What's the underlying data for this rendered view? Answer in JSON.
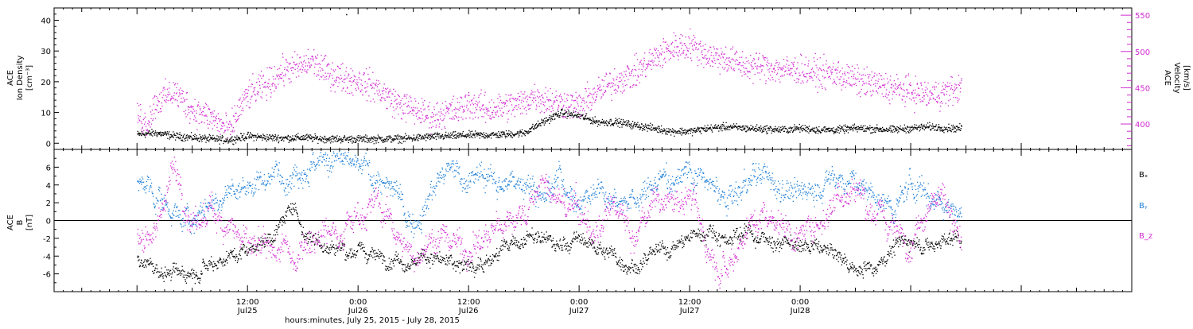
{
  "chart_data": [
    {
      "type": "scatter",
      "panel": "plasma",
      "y_left_label_lines": [
        "ACE",
        "Ion Density",
        "[cm⁻³]"
      ],
      "y_right_label_lines": [
        "ACE",
        "Velocity",
        "[km/s]"
      ],
      "ylim_left": [
        -2,
        44
      ],
      "ylim_right": [
        365,
        560
      ],
      "yticks_left": [
        0,
        10,
        20,
        30,
        40
      ],
      "yticks_right": [
        400,
        450,
        500,
        550
      ],
      "series": [
        {
          "axis": "left",
          "color": "#000000",
          "anchors": [
            [
              0,
              3
            ],
            [
              2,
              3.5
            ],
            [
              4,
              2.5
            ],
            [
              6,
              2
            ],
            [
              8,
              1.5
            ],
            [
              10,
              1.2
            ],
            [
              12,
              2.5
            ],
            [
              14,
              2
            ],
            [
              16,
              1.8
            ],
            [
              18,
              2
            ],
            [
              20,
              1.6
            ],
            [
              22,
              1.5
            ],
            [
              24,
              1.5
            ],
            [
              26,
              1.5
            ],
            [
              28,
              1.6
            ],
            [
              30,
              1.8
            ],
            [
              32,
              2.3
            ],
            [
              34,
              2.5
            ],
            [
              36,
              2.8
            ],
            [
              38,
              2.8
            ],
            [
              40,
              3
            ],
            [
              42,
              3.5
            ],
            [
              44,
              7
            ],
            [
              46,
              10
            ],
            [
              48,
              9
            ],
            [
              50,
              7
            ],
            [
              52,
              7
            ],
            [
              54,
              6
            ],
            [
              56,
              5
            ],
            [
              58,
              4
            ],
            [
              60,
              4
            ],
            [
              62,
              5
            ],
            [
              64,
              5.5
            ],
            [
              66,
              5
            ],
            [
              68,
              4.8
            ],
            [
              70,
              4.5
            ],
            [
              72,
              5
            ],
            [
              74,
              4.5
            ],
            [
              76,
              4.5
            ],
            [
              78,
              5
            ],
            [
              80,
              4.8
            ],
            [
              82,
              4.5
            ],
            [
              84,
              5
            ],
            [
              86,
              5.5
            ],
            [
              88,
              5
            ],
            [
              89.5,
              5
            ]
          ],
          "noise": 0.6
        },
        {
          "axis": "right",
          "color": "#d22ad2",
          "anchors": [
            [
              0,
              415
            ],
            [
              1,
              400
            ],
            [
              2,
              430
            ],
            [
              4,
              445
            ],
            [
              6,
              420
            ],
            [
              8,
              410
            ],
            [
              10,
              390
            ],
            [
              11,
              420
            ],
            [
              12,
              440
            ],
            [
              14,
              455
            ],
            [
              16,
              475
            ],
            [
              18,
              480
            ],
            [
              19,
              488
            ],
            [
              20,
              475
            ],
            [
              22,
              465
            ],
            [
              24,
              460
            ],
            [
              26,
              450
            ],
            [
              28,
              430
            ],
            [
              30,
              420
            ],
            [
              32,
              410
            ],
            [
              33,
              415
            ],
            [
              35,
              420
            ],
            [
              36,
              430
            ],
            [
              38,
              420
            ],
            [
              40,
              425
            ],
            [
              42,
              430
            ],
            [
              43,
              440
            ],
            [
              44,
              435
            ],
            [
              46,
              430
            ],
            [
              48,
              425
            ],
            [
              50,
              445
            ],
            [
              52,
              460
            ],
            [
              54,
              470
            ],
            [
              56,
              490
            ],
            [
              58,
              505
            ],
            [
              60,
              510
            ],
            [
              62,
              495
            ],
            [
              64,
              490
            ],
            [
              66,
              480
            ],
            [
              68,
              480
            ],
            [
              70,
              475
            ],
            [
              72,
              475
            ],
            [
              74,
              470
            ],
            [
              76,
              470
            ],
            [
              78,
              460
            ],
            [
              80,
              455
            ],
            [
              82,
              450
            ],
            [
              84,
              445
            ],
            [
              86,
              440
            ],
            [
              88,
              445
            ],
            [
              89.5,
              450
            ]
          ],
          "noise": 10
        }
      ],
      "outliers": [
        [
          22.7,
          42
        ]
      ]
    },
    {
      "type": "scatter",
      "panel": "magnetic",
      "y_left_label_lines": [
        "ACE",
        "B",
        "[nT]"
      ],
      "ylim": [
        -8,
        8
      ],
      "yticks": [
        -6,
        -4,
        -2,
        0,
        2,
        4,
        6
      ],
      "legend_right": [
        "Bₓ",
        "Bᵧ",
        "B_z"
      ],
      "series": [
        {
          "name": "Bₓ",
          "color": "#000000",
          "anchors": [
            [
              0,
              -4
            ],
            [
              2,
              -5.5
            ],
            [
              4,
              -6
            ],
            [
              6,
              -5.5
            ],
            [
              8,
              -4.5
            ],
            [
              10,
              -4
            ],
            [
              12,
              -3
            ],
            [
              14,
              -2
            ],
            [
              16,
              0
            ],
            [
              17,
              2
            ],
            [
              18,
              -1
            ],
            [
              20,
              -2.5
            ],
            [
              22,
              -3
            ],
            [
              24,
              -3.5
            ],
            [
              26,
              -4
            ],
            [
              28,
              -4
            ],
            [
              30,
              -4.5
            ],
            [
              32,
              -4
            ],
            [
              34,
              -5
            ],
            [
              36,
              -5
            ],
            [
              38,
              -4.5
            ],
            [
              40,
              -3
            ],
            [
              42,
              -2
            ],
            [
              44,
              -2
            ],
            [
              46,
              -3
            ],
            [
              48,
              -2
            ],
            [
              50,
              -3
            ],
            [
              52,
              -4
            ],
            [
              54,
              -5
            ],
            [
              56,
              -4
            ],
            [
              58,
              -3
            ],
            [
              60,
              -2
            ],
            [
              62,
              -1
            ],
            [
              64,
              -2
            ],
            [
              66,
              -1
            ],
            [
              68,
              -2
            ],
            [
              70,
              -2.5
            ],
            [
              72,
              -3
            ],
            [
              74,
              -3
            ],
            [
              76,
              -4
            ],
            [
              78,
              -5.5
            ],
            [
              80,
              -5
            ],
            [
              82,
              -3
            ],
            [
              84,
              -2
            ],
            [
              86,
              -3
            ],
            [
              88,
              -2
            ],
            [
              89.5,
              -2
            ]
          ],
          "noise": 0.9
        },
        {
          "name": "Bᵧ",
          "color": "#1e7fd8",
          "anchors": [
            [
              0,
              4
            ],
            [
              2,
              3
            ],
            [
              4,
              1
            ],
            [
              6,
              0
            ],
            [
              8,
              2
            ],
            [
              10,
              3
            ],
            [
              12,
              4
            ],
            [
              14,
              5
            ],
            [
              16,
              5.5
            ],
            [
              18,
              6.5
            ],
            [
              20,
              6.5
            ],
            [
              22,
              6.5
            ],
            [
              24,
              6
            ],
            [
              26,
              5
            ],
            [
              28,
              3
            ],
            [
              29,
              1
            ],
            [
              30,
              0
            ],
            [
              31,
              2
            ],
            [
              32,
              4
            ],
            [
              34,
              5.5
            ],
            [
              36,
              5
            ],
            [
              38,
              5
            ],
            [
              40,
              4
            ],
            [
              42,
              5
            ],
            [
              44,
              3
            ],
            [
              46,
              5
            ],
            [
              48,
              2
            ],
            [
              50,
              4
            ],
            [
              52,
              3
            ],
            [
              54,
              2
            ],
            [
              56,
              4
            ],
            [
              58,
              5
            ],
            [
              60,
              6
            ],
            [
              62,
              4
            ],
            [
              64,
              2
            ],
            [
              66,
              4
            ],
            [
              68,
              5
            ],
            [
              70,
              4
            ],
            [
              72,
              3
            ],
            [
              74,
              4
            ],
            [
              76,
              5
            ],
            [
              78,
              4
            ],
            [
              80,
              3
            ],
            [
              82,
              1
            ],
            [
              84,
              4
            ],
            [
              86,
              3
            ],
            [
              88,
              2
            ],
            [
              89.5,
              1
            ]
          ],
          "noise": 1.4
        },
        {
          "name": "B_z",
          "color": "#d22ad2",
          "anchors": [
            [
              0,
              -2
            ],
            [
              2,
              -1
            ],
            [
              3,
              3
            ],
            [
              4,
              6
            ],
            [
              5,
              3
            ],
            [
              6,
              -1
            ],
            [
              8,
              1
            ],
            [
              10,
              0
            ],
            [
              12,
              -3
            ],
            [
              14,
              -4
            ],
            [
              16,
              -3
            ],
            [
              17,
              -5
            ],
            [
              18,
              -2
            ],
            [
              20,
              -1
            ],
            [
              22,
              -1
            ],
            [
              24,
              1
            ],
            [
              26,
              2
            ],
            [
              28,
              -1
            ],
            [
              29,
              -3
            ],
            [
              30,
              -4
            ],
            [
              32,
              -2
            ],
            [
              34,
              -2
            ],
            [
              36,
              -3
            ],
            [
              38,
              -2
            ],
            [
              40,
              0
            ],
            [
              42,
              1
            ],
            [
              44,
              4
            ],
            [
              46,
              2
            ],
            [
              48,
              1
            ],
            [
              50,
              -2
            ],
            [
              52,
              2
            ],
            [
              54,
              -3
            ],
            [
              56,
              3
            ],
            [
              58,
              2
            ],
            [
              60,
              3
            ],
            [
              62,
              -3
            ],
            [
              64,
              -5
            ],
            [
              66,
              -1
            ],
            [
              68,
              1
            ],
            [
              70,
              0
            ],
            [
              72,
              -2
            ],
            [
              74,
              0
            ],
            [
              76,
              3
            ],
            [
              78,
              4
            ],
            [
              80,
              1
            ],
            [
              82,
              -1
            ],
            [
              84,
              -2
            ],
            [
              86,
              3
            ],
            [
              88,
              2
            ],
            [
              89.5,
              -3
            ]
          ],
          "noise": 1.6
        }
      ]
    }
  ],
  "x_axis": {
    "range_hours": [
      -9,
      108
    ],
    "data_end_hours": 89.6,
    "major_ticks": [
      {
        "hours": 12,
        "time": "12:00",
        "date": "Jul25"
      },
      {
        "hours": 24,
        "time": "0:00",
        "date": "Jul26"
      },
      {
        "hours": 36,
        "time": "12:00",
        "date": "Jul26"
      },
      {
        "hours": 48,
        "time": "0:00",
        "date": "Jul27"
      },
      {
        "hours": 60,
        "time": "12:00",
        "date": "Jul27"
      },
      {
        "hours": 72,
        "time": "0:00",
        "date": "Jul28"
      }
    ],
    "title": "hours:minutes, July 25, 2015 - July 28, 2015"
  },
  "colors": {
    "black": "#000000",
    "magenta": "#d22ad2",
    "blue": "#1e7fd8",
    "frame": "#000000"
  }
}
